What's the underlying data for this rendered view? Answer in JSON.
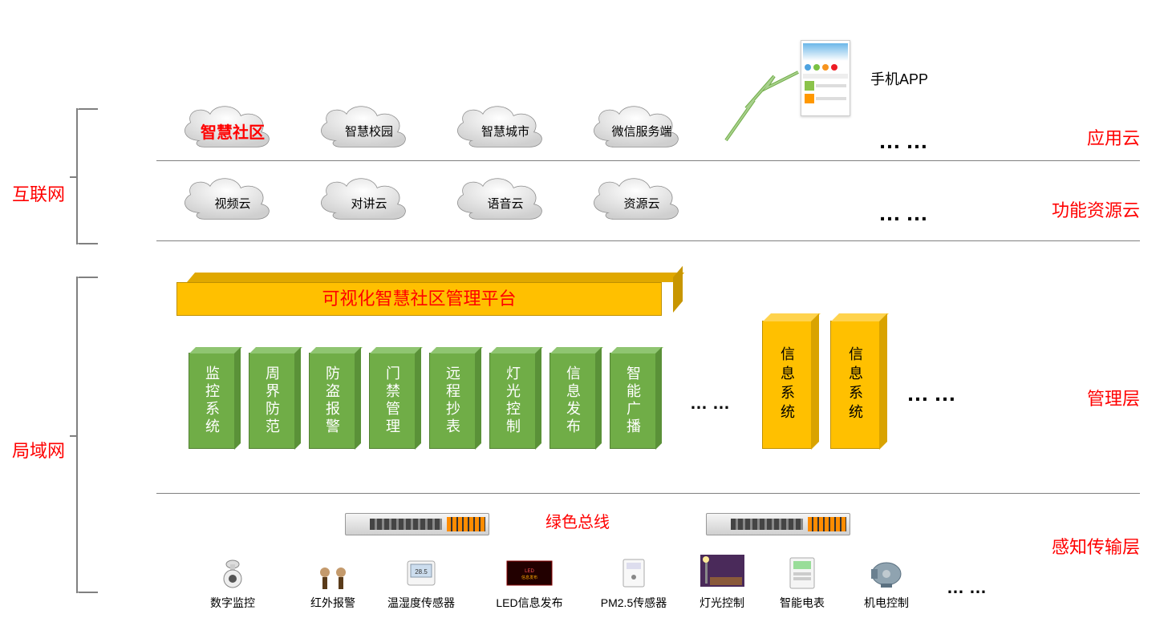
{
  "leftLabels": {
    "internet": "互联网",
    "lan": "局域网"
  },
  "rightLabels": {
    "appCloud": "应用云",
    "funcCloud": "功能资源云",
    "mgmt": "管理层",
    "sense": "感知传输层"
  },
  "clouds_row1": [
    {
      "label": "智慧社区",
      "highlight": true
    },
    {
      "label": "智慧校园",
      "highlight": false
    },
    {
      "label": "智慧城市",
      "highlight": false
    },
    {
      "label": "微信服务端",
      "highlight": false
    }
  ],
  "clouds_row2": [
    {
      "label": "视频云"
    },
    {
      "label": "对讲云"
    },
    {
      "label": "语音云"
    },
    {
      "label": "资源云"
    }
  ],
  "appLabel": "手机APP",
  "platform": "可视化智慧社区管理平台",
  "greenBlocks": [
    "监控系统",
    "周界防范",
    "防盗报警",
    "门禁管理",
    "远程抄表",
    "灯光控制",
    "信息发布",
    "智能广播"
  ],
  "orangeBlocks": [
    "信息系统",
    "信息系统"
  ],
  "busLabel": "绿色总线",
  "devices": [
    "数字监控",
    "红外报警",
    "温湿度传感器",
    "LED信息发布",
    "PM2.5传感器",
    "灯光控制",
    "智能电表",
    "机电控制"
  ],
  "dots": "……",
  "colors": {
    "red": "#ff0000",
    "green": "#70ad47",
    "orange": "#ffc000",
    "gray": "#808080"
  }
}
